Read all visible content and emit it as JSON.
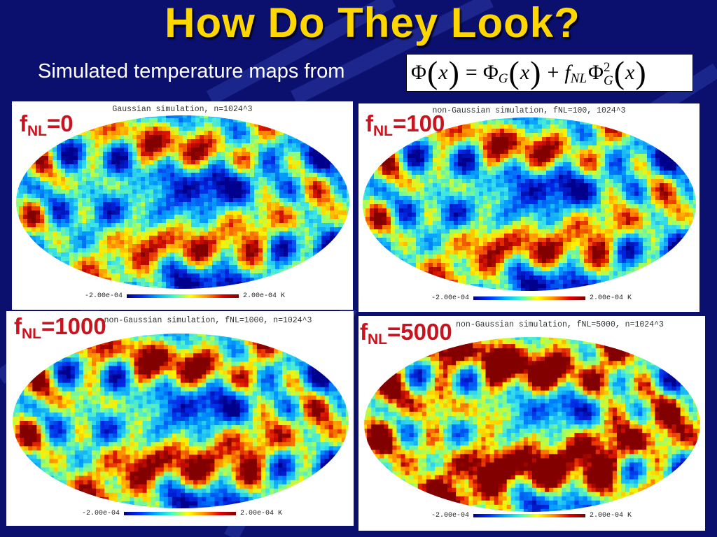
{
  "slide": {
    "title": "How Do They Look?",
    "subtitle": "Simulated temperature maps from"
  },
  "formula": {
    "phi": "Φ",
    "x": "x",
    "eq": "=",
    "plus": "+",
    "sub_G": "G",
    "f": "f",
    "sub_NL": "NL",
    "sup_2": "2"
  },
  "panels": [
    {
      "label_f": "f",
      "label_sub": "NL",
      "label_val": "=0",
      "title": "Gaussian simulation, n=1024^3",
      "cb_min": "-2.00e-04",
      "cb_max": "2.00e-04 K"
    },
    {
      "label_f": "f",
      "label_sub": "NL",
      "label_val": "=100",
      "title": "non-Gaussian simulation, fNL=100, 1024^3",
      "cb_min": "-2.00e-04",
      "cb_max": "2.00e-04 K"
    },
    {
      "label_f": "f",
      "label_sub": "NL",
      "label_val": "=1000",
      "title": "non-Gaussian simulation, fNL=1000, n=1024^3",
      "cb_min": "-2.00e-04",
      "cb_max": "2.00e-04 K"
    },
    {
      "label_f": "f",
      "label_sub": "NL",
      "label_val": "=5000",
      "title": "non-Gaussian simulation, fNL=5000, n=1024^3",
      "cb_min": "-2.00e-04",
      "cb_max": "2.00e-04 K"
    }
  ],
  "colors": {
    "background": "#0b0f6e",
    "title": "#ffd700",
    "label": "#c8141e"
  }
}
